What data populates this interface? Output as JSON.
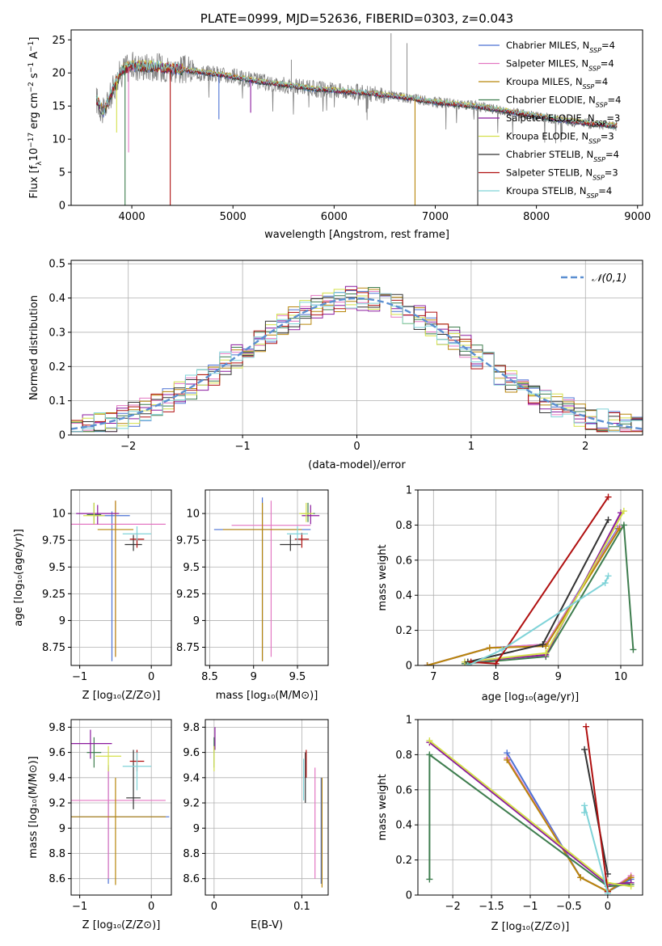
{
  "colors": {
    "chabrier_miles": "#4c72d4",
    "salpeter_miles": "#e377c2",
    "kroupa_miles": "#b8860b",
    "chabrier_elodie": "#3e7d4e",
    "salpeter_elodie": "#8b1a9e",
    "kroupa_elodie": "#d4e04a",
    "chabrier_stelib": "#333333",
    "salpeter_stelib": "#b01010",
    "kroupa_stelib": "#7fd3d8",
    "data": "#808080",
    "gauss": "#5b8fd1",
    "grid": "#b0b0b0"
  },
  "chart_data": [
    {
      "type": "line",
      "title": "PLATE=0999, MJD=52636, FIBERID=0303, z=0.043",
      "xlabel": "wavelength [Angstrom, rest frame]",
      "ylabel": "Flux [fλ10⁻¹⁷ erg cm⁻² s⁻¹ A⁻¹]",
      "xlim": [
        3400,
        9050
      ],
      "ylim": [
        0,
        26.5
      ],
      "xticks": [
        4000,
        5000,
        6000,
        7000,
        8000,
        9000
      ],
      "yticks": [
        0,
        5,
        10,
        15,
        20,
        25
      ],
      "legend": {
        "placement": "top-right",
        "entries": [
          {
            "base": "Chabrier MILES, N",
            "sub": "SSP",
            "tail": "=4"
          },
          {
            "base": "Salpeter MILES, N",
            "sub": "SSP",
            "tail": "=4"
          },
          {
            "base": "Kroupa MILES, N",
            "sub": "SSP",
            "tail": "=4"
          },
          {
            "base": "Chabrier ELODIE, N",
            "sub": "SSP",
            "tail": "=4"
          },
          {
            "base": "Salpeter ELODIE, N",
            "sub": "SSP",
            "tail": "=3"
          },
          {
            "base": "Kroupa ELODIE, N",
            "sub": "SSP",
            "tail": "=3"
          },
          {
            "base": "Chabrier STELIB, N",
            "sub": "SSP",
            "tail": "=4"
          },
          {
            "base": "Salpeter STELIB, N",
            "sub": "SSP",
            "tail": "=3"
          },
          {
            "base": "Kroupa STELIB, N",
            "sub": "SSP",
            "tail": "=4"
          }
        ]
      },
      "continuum": [
        [
          3650,
          16
        ],
        [
          3720,
          14
        ],
        [
          3800,
          17
        ],
        [
          3900,
          20.5
        ],
        [
          4000,
          21
        ],
        [
          4200,
          21
        ],
        [
          4500,
          20.5
        ],
        [
          4900,
          19.7
        ],
        [
          5300,
          18.6
        ],
        [
          5800,
          17.6
        ],
        [
          6300,
          17
        ],
        [
          6700,
          16.3
        ],
        [
          7000,
          15.6
        ],
        [
          7400,
          15
        ],
        [
          7800,
          14
        ],
        [
          8200,
          13
        ],
        [
          8500,
          12.4
        ],
        [
          8800,
          12
        ]
      ],
      "features": [
        {
          "x": 3933,
          "lo": 0
        },
        {
          "x": 4380,
          "lo": 0
        },
        {
          "x": 6800,
          "lo": 0
        },
        {
          "x": 7420,
          "lo": 0
        },
        {
          "x": 3968,
          "lo": 8
        },
        {
          "x": 3850,
          "lo": 11
        },
        {
          "x": 4861,
          "lo": 13
        },
        {
          "x": 5175,
          "lo": 14
        }
      ],
      "emission": [
        {
          "x": 6563,
          "hi": 26
        },
        {
          "x": 6720,
          "hi": 24.5
        },
        {
          "x": 5577,
          "hi": 22
        }
      ]
    },
    {
      "type": "bar",
      "xlabel": "(data-model)/error",
      "ylabel": "Normed distribution",
      "xlim": [
        -2.5,
        2.5
      ],
      "ylim": [
        0,
        0.51
      ],
      "xticks": [
        -2,
        -1,
        0,
        1,
        2
      ],
      "yticks": [
        0.0,
        0.1,
        0.2,
        0.3,
        0.4,
        0.5
      ],
      "gauss_label": "𝒩(0,1)",
      "bin_width": 0.1,
      "peak": [
        {
          "x": -0.25,
          "y": 0.485
        },
        {
          "x": -0.35,
          "y": 0.47
        },
        {
          "x": 0.25,
          "y": 0.46
        },
        {
          "x": 0.55,
          "y": 0.42
        }
      ]
    },
    {
      "type": "scatter",
      "xlabel": "Z [log₁₀(Z/Z⊙)]",
      "ylabel": "age  [log₁₀(age/yr)]",
      "xlim": [
        -1.12,
        0.28
      ],
      "ylim": [
        8.58,
        10.22
      ],
      "xticks": [
        -1,
        0
      ],
      "yticks": [
        8.75,
        9.0,
        9.25,
        9.5,
        9.75,
        10.0
      ],
      "points": [
        {
          "c": "chabrier_miles",
          "x": -0.55,
          "y": 9.98,
          "xe": 0.25,
          "ye": [
            8.62,
            10.02
          ]
        },
        {
          "c": "salpeter_miles",
          "x": -0.5,
          "y": 9.9,
          "xe": 0.7,
          "ye": [
            8.66,
            10.12
          ]
        },
        {
          "c": "kroupa_miles",
          "x": -0.5,
          "y": 9.85,
          "xe": 0.25,
          "ye": [
            8.66,
            10.12
          ]
        },
        {
          "c": "chabrier_elodie",
          "x": -0.8,
          "y": 9.99,
          "xe": 0.1,
          "ye": [
            9.9,
            10.1
          ]
        },
        {
          "c": "salpeter_elodie",
          "x": -0.75,
          "y": 10.0,
          "xe": 0.3,
          "ye": [
            9.9,
            10.08
          ]
        },
        {
          "c": "kroupa_elodie",
          "x": -0.8,
          "y": 9.98,
          "xe": 0.15,
          "ye": [
            9.9,
            10.1
          ]
        },
        {
          "c": "chabrier_stelib",
          "x": -0.25,
          "y": 9.71,
          "xe": 0.12,
          "ye": [
            9.65,
            9.8
          ]
        },
        {
          "c": "salpeter_stelib",
          "x": -0.2,
          "y": 9.76,
          "xe": 0.1,
          "ye": [
            9.68,
            9.82
          ]
        },
        {
          "c": "kroupa_stelib",
          "x": -0.2,
          "y": 9.81,
          "xe": 0.2,
          "ye": [
            9.75,
            9.88
          ]
        }
      ]
    },
    {
      "type": "scatter",
      "xlabel": "mass [log₁₀(M/M⊙)]",
      "ylabel": "",
      "xlim": [
        8.45,
        9.85
      ],
      "ylim": [
        8.58,
        10.22
      ],
      "xticks": [
        8.5,
        9.0,
        9.5
      ],
      "yticks": [
        8.75,
        9.0,
        9.25,
        9.5,
        9.75,
        10.0
      ],
      "points": [
        {
          "c": "chabrier_miles",
          "x": 9.1,
          "y": 9.85,
          "xe": 0.55,
          "ye": [
            8.62,
            10.15
          ]
        },
        {
          "c": "salpeter_miles",
          "x": 9.2,
          "y": 9.89,
          "xe": 0.45,
          "ye": [
            8.66,
            10.12
          ]
        },
        {
          "c": "kroupa_miles",
          "x": 9.1,
          "y": 9.85,
          "xe": 0.45,
          "ye": [
            8.62,
            10.1
          ]
        },
        {
          "c": "chabrier_elodie",
          "x": 9.62,
          "y": 10.0,
          "xe": 0.08,
          "ye": [
            9.92,
            10.1
          ]
        },
        {
          "c": "salpeter_elodie",
          "x": 9.65,
          "y": 9.98,
          "xe": 0.1,
          "ye": [
            9.9,
            10.08
          ]
        },
        {
          "c": "kroupa_elodie",
          "x": 9.6,
          "y": 10.0,
          "xe": 0.08,
          "ye": [
            9.92,
            10.1
          ]
        },
        {
          "c": "chabrier_stelib",
          "x": 9.42,
          "y": 9.71,
          "xe": 0.12,
          "ye": [
            9.65,
            9.8
          ]
        },
        {
          "c": "salpeter_stelib",
          "x": 9.55,
          "y": 9.76,
          "xe": 0.08,
          "ye": [
            9.68,
            9.82
          ]
        },
        {
          "c": "kroupa_stelib",
          "x": 9.5,
          "y": 9.81,
          "xe": 0.12,
          "ye": [
            9.75,
            9.88
          ]
        }
      ]
    },
    {
      "type": "line",
      "xlabel": "age  [log₁₀(age/yr)]",
      "ylabel": "mass weight",
      "xlim": [
        6.75,
        10.35
      ],
      "ylim": [
        0,
        1
      ],
      "xticks": [
        7,
        8,
        9,
        10
      ],
      "yticks": [
        0.0,
        0.2,
        0.4,
        0.6,
        0.8,
        1.0
      ],
      "series": [
        {
          "c": "chabrier_miles",
          "x": [
            6.9,
            7.9,
            8.8,
            9.95
          ],
          "y": [
            0.0,
            0.1,
            0.12,
            0.78
          ]
        },
        {
          "c": "salpeter_miles",
          "x": [
            6.9,
            7.9,
            8.8,
            9.98
          ],
          "y": [
            0.0,
            0.1,
            0.12,
            0.79
          ]
        },
        {
          "c": "kroupa_miles",
          "x": [
            6.9,
            7.9,
            8.8,
            9.98
          ],
          "y": [
            0.0,
            0.1,
            0.11,
            0.78
          ]
        },
        {
          "c": "chabrier_elodie",
          "x": [
            7.5,
            8.8,
            10.05,
            10.2
          ],
          "y": [
            0.01,
            0.05,
            0.8,
            0.09
          ]
        },
        {
          "c": "salpeter_elodie",
          "x": [
            7.5,
            8.8,
            10.0
          ],
          "y": [
            0.02,
            0.06,
            0.87
          ]
        },
        {
          "c": "kroupa_elodie",
          "x": [
            7.5,
            8.8,
            10.05
          ],
          "y": [
            0.02,
            0.07,
            0.88
          ]
        },
        {
          "c": "chabrier_stelib",
          "x": [
            7.55,
            8.75,
            9.8
          ],
          "y": [
            0.02,
            0.12,
            0.83
          ]
        },
        {
          "c": "salpeter_stelib",
          "x": [
            7.6,
            8.0,
            9.8
          ],
          "y": [
            0.02,
            0.01,
            0.96
          ]
        },
        {
          "c": "kroupa_stelib",
          "x": [
            7.55,
            8.1,
            9.75,
            9.8
          ],
          "y": [
            0.0,
            0.09,
            0.47,
            0.51
          ]
        }
      ]
    },
    {
      "type": "scatter",
      "xlabel": "Z [log₁₀(Z/Z⊙)]",
      "ylabel": "mass [log₁₀(M/M⊙)]",
      "xlim": [
        -1.12,
        0.28
      ],
      "ylim": [
        8.47,
        9.86
      ],
      "xticks": [
        -1,
        0
      ],
      "yticks": [
        8.6,
        8.8,
        9.0,
        9.2,
        9.4,
        9.6,
        9.8
      ],
      "points": [
        {
          "c": "chabrier_miles",
          "x": -0.6,
          "y": 9.09,
          "xe": 0.85,
          "ye": [
            8.56,
            9.5
          ]
        },
        {
          "c": "salpeter_miles",
          "x": -0.6,
          "y": 9.22,
          "xe": 0.8,
          "ye": [
            8.6,
            9.48
          ]
        },
        {
          "c": "kroupa_miles",
          "x": -0.5,
          "y": 9.09,
          "xe": 0.7,
          "ye": [
            8.55,
            9.4
          ]
        },
        {
          "c": "chabrier_elodie",
          "x": -0.8,
          "y": 9.6,
          "xe": 0.1,
          "ye": [
            9.48,
            9.72
          ]
        },
        {
          "c": "salpeter_elodie",
          "x": -0.85,
          "y": 9.67,
          "xe": 0.3,
          "ye": [
            9.55,
            9.78
          ]
        },
        {
          "c": "kroupa_elodie",
          "x": -0.6,
          "y": 9.57,
          "xe": 0.18,
          "ye": [
            9.45,
            9.65
          ]
        },
        {
          "c": "chabrier_stelib",
          "x": -0.25,
          "y": 9.24,
          "xe": 0.1,
          "ye": [
            9.15,
            9.62
          ]
        },
        {
          "c": "salpeter_stelib",
          "x": -0.2,
          "y": 9.53,
          "xe": 0.1,
          "ye": [
            9.45,
            9.62
          ]
        },
        {
          "c": "kroupa_stelib",
          "x": -0.2,
          "y": 9.49,
          "xe": 0.2,
          "ye": [
            9.3,
            9.6
          ]
        }
      ]
    },
    {
      "type": "scatter",
      "xlabel": "E(B-V)",
      "ylabel": "",
      "xlim": [
        -0.01,
        0.13
      ],
      "ylim": [
        8.47,
        9.86
      ],
      "xticks": [
        0.0,
        0.1
      ],
      "yticks": [
        8.6,
        8.8,
        9.0,
        9.2,
        9.4,
        9.6,
        9.8
      ],
      "points": [
        {
          "c": "chabrier_miles",
          "x": 0.122,
          "y": 9.09,
          "ye": [
            8.56,
            9.4
          ]
        },
        {
          "c": "salpeter_miles",
          "x": 0.115,
          "y": 9.22,
          "ye": [
            8.6,
            9.48
          ]
        },
        {
          "c": "kroupa_miles",
          "x": 0.123,
          "y": 9.09,
          "ye": [
            8.53,
            9.4
          ]
        },
        {
          "c": "chabrier_elodie",
          "x": 0.0,
          "y": 9.6,
          "ye": [
            9.48,
            9.72
          ]
        },
        {
          "c": "salpeter_elodie",
          "x": 0.001,
          "y": 9.72,
          "ye": [
            9.62,
            9.8
          ]
        },
        {
          "c": "kroupa_elodie",
          "x": 0.0,
          "y": 9.55,
          "ye": [
            9.45,
            9.65
          ]
        },
        {
          "c": "chabrier_stelib",
          "x": 0.104,
          "y": 9.3,
          "ye": [
            9.2,
            9.6
          ]
        },
        {
          "c": "salpeter_stelib",
          "x": 0.105,
          "y": 9.5,
          "ye": [
            9.4,
            9.62
          ]
        },
        {
          "c": "kroupa_stelib",
          "x": 0.102,
          "y": 9.4,
          "ye": [
            9.22,
            9.55
          ]
        }
      ]
    },
    {
      "type": "line",
      "xlabel": "Z [log₁₀(Z/Z⊙)]",
      "ylabel": "mass weight",
      "xlim": [
        -2.45,
        0.45
      ],
      "ylim": [
        0,
        1
      ],
      "xticks": [
        -2.0,
        -1.5,
        -1.0,
        -0.5,
        0.0
      ],
      "yticks": [
        0.0,
        0.2,
        0.4,
        0.6,
        0.8,
        1.0
      ],
      "series": [
        {
          "c": "chabrier_miles",
          "x": [
            -1.3,
            -0.35,
            0.0,
            0.3
          ],
          "y": [
            0.81,
            0.1,
            0.02,
            0.09
          ]
        },
        {
          "c": "salpeter_miles",
          "x": [
            -1.3,
            -0.35,
            0.0,
            0.3
          ],
          "y": [
            0.78,
            0.1,
            0.02,
            0.11
          ]
        },
        {
          "c": "kroupa_miles",
          "x": [
            -1.3,
            -0.35,
            0.0,
            0.3
          ],
          "y": [
            0.77,
            0.1,
            0.02,
            0.1
          ]
        },
        {
          "c": "chabrier_elodie",
          "x": [
            -2.3,
            -2.3,
            0.0,
            0.3
          ],
          "y": [
            0.09,
            0.8,
            0.05,
            0.06
          ]
        },
        {
          "c": "salpeter_elodie",
          "x": [
            -2.3,
            0.0,
            0.3
          ],
          "y": [
            0.87,
            0.06,
            0.07
          ]
        },
        {
          "c": "kroupa_elodie",
          "x": [
            -2.3,
            0.0,
            0.3
          ],
          "y": [
            0.88,
            0.07,
            0.05
          ]
        },
        {
          "c": "chabrier_stelib",
          "x": [
            -0.3,
            0.0
          ],
          "y": [
            0.83,
            0.12
          ]
        },
        {
          "c": "salpeter_stelib",
          "x": [
            -0.28,
            0.0
          ],
          "y": [
            0.96,
            0.02
          ]
        },
        {
          "c": "kroupa_stelib",
          "x": [
            -0.3,
            -0.3,
            0.0
          ],
          "y": [
            0.47,
            0.51,
            0.01
          ]
        }
      ]
    }
  ]
}
